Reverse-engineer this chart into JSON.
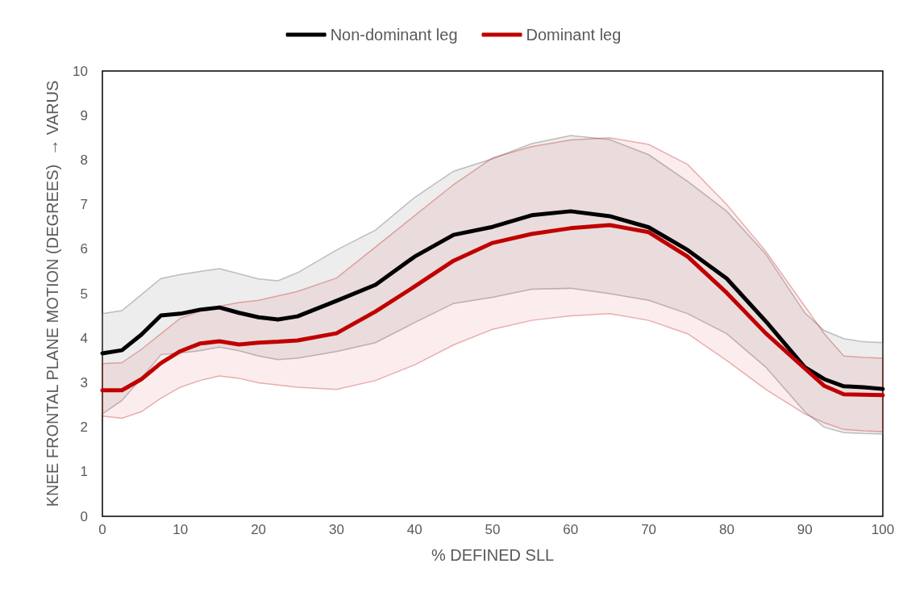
{
  "chart_data": {
    "type": "line",
    "xlabel": "% DEFINED SLL",
    "ylabel": "KNEE FRONTAL PLANE MOTION (DEGREES)  → VARUS",
    "x": [
      0,
      2.5,
      5,
      7.5,
      10,
      12.5,
      15,
      17.5,
      20,
      22.5,
      25,
      30,
      35,
      40,
      45,
      50,
      55,
      60,
      65,
      70,
      75,
      80,
      85,
      90,
      92.5,
      95,
      97.5,
      100
    ],
    "series": [
      {
        "name": "Non-dominant leg",
        "color": "#000000",
        "values": [
          3.66,
          3.73,
          4.08,
          4.51,
          4.55,
          4.64,
          4.69,
          4.57,
          4.47,
          4.42,
          4.49,
          4.84,
          5.2,
          5.83,
          6.32,
          6.5,
          6.76,
          6.85,
          6.74,
          6.49,
          5.98,
          5.34,
          4.38,
          3.35,
          3.08,
          2.92,
          2.9,
          2.86
        ],
        "upper": [
          4.55,
          4.62,
          4.98,
          5.34,
          5.43,
          5.5,
          5.56,
          5.45,
          5.33,
          5.29,
          5.47,
          5.98,
          6.43,
          7.16,
          7.75,
          8.03,
          8.37,
          8.55,
          8.46,
          8.12,
          7.52,
          6.85,
          5.89,
          4.57,
          4.17,
          3.99,
          3.92,
          3.9
        ],
        "lower": [
          2.3,
          2.6,
          3.1,
          3.63,
          3.67,
          3.72,
          3.8,
          3.72,
          3.6,
          3.52,
          3.55,
          3.7,
          3.9,
          4.35,
          4.78,
          4.92,
          5.1,
          5.12,
          5.0,
          4.85,
          4.55,
          4.1,
          3.35,
          2.35,
          2.0,
          1.88,
          1.86,
          1.85
        ]
      },
      {
        "name": "Dominant leg",
        "color": "#c00000",
        "values": [
          2.83,
          2.83,
          3.08,
          3.44,
          3.71,
          3.88,
          3.93,
          3.86,
          3.9,
          3.92,
          3.95,
          4.11,
          4.6,
          5.16,
          5.74,
          6.14,
          6.34,
          6.47,
          6.54,
          6.38,
          5.83,
          5.02,
          4.11,
          3.32,
          2.93,
          2.74,
          2.73,
          2.72
        ],
        "upper": [
          3.43,
          3.45,
          3.75,
          4.1,
          4.45,
          4.6,
          4.72,
          4.8,
          4.85,
          4.95,
          5.05,
          5.35,
          6.05,
          6.75,
          7.45,
          8.05,
          8.3,
          8.45,
          8.5,
          8.35,
          7.9,
          7.0,
          5.95,
          4.72,
          4.1,
          3.6,
          3.57,
          3.55
        ],
        "lower": [
          2.25,
          2.2,
          2.35,
          2.65,
          2.9,
          3.05,
          3.15,
          3.1,
          3.0,
          2.95,
          2.9,
          2.85,
          3.05,
          3.4,
          3.85,
          4.2,
          4.4,
          4.5,
          4.55,
          4.4,
          4.1,
          3.5,
          2.85,
          2.3,
          2.1,
          1.95,
          1.92,
          1.9
        ]
      }
    ],
    "xlim": [
      0,
      100
    ],
    "xticks": [
      0,
      10,
      20,
      30,
      40,
      50,
      60,
      70,
      80,
      90,
      100
    ],
    "ylim": [
      0,
      10
    ],
    "yticks": [
      0,
      1,
      2,
      3,
      4,
      5,
      6,
      7,
      8,
      9,
      10
    ],
    "grid": false,
    "legend": "top",
    "marker": "none",
    "line_style": "solid"
  }
}
